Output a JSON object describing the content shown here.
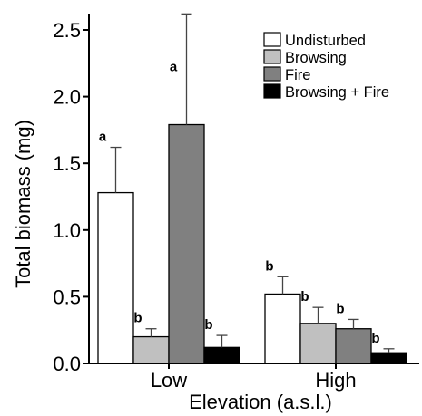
{
  "chart_data": {
    "type": "bar",
    "title": "",
    "xlabel": "Elevation (a.s.l.)",
    "ylabel": "Total biomass (mg)",
    "ylim": [
      0,
      2.6
    ],
    "yticks": [
      "0.0",
      "0.5",
      "1.0",
      "1.5",
      "2.0",
      "2.5"
    ],
    "categories": [
      "Low",
      "High"
    ],
    "legend_position": "top-right",
    "series": [
      {
        "name": "Undisturbed",
        "color": "#ffffff",
        "values": [
          1.28,
          0.52
        ],
        "errors": [
          0.34,
          0.13
        ],
        "letters": [
          "a",
          "b"
        ]
      },
      {
        "name": "Browsing",
        "color": "#c0c0c0",
        "values": [
          0.2,
          0.3
        ],
        "errors": [
          0.06,
          0.12
        ],
        "letters": [
          "b",
          "b"
        ]
      },
      {
        "name": "Fire",
        "color": "#808080",
        "values": [
          1.79,
          0.26
        ],
        "errors": [
          0.83,
          0.07
        ],
        "letters": [
          "a",
          "b"
        ]
      },
      {
        "name": "Browsing + Fire",
        "color": "#000000",
        "values": [
          0.12,
          0.08
        ],
        "errors": [
          0.09,
          0.03
        ],
        "letters": [
          "b",
          "b"
        ]
      }
    ]
  }
}
